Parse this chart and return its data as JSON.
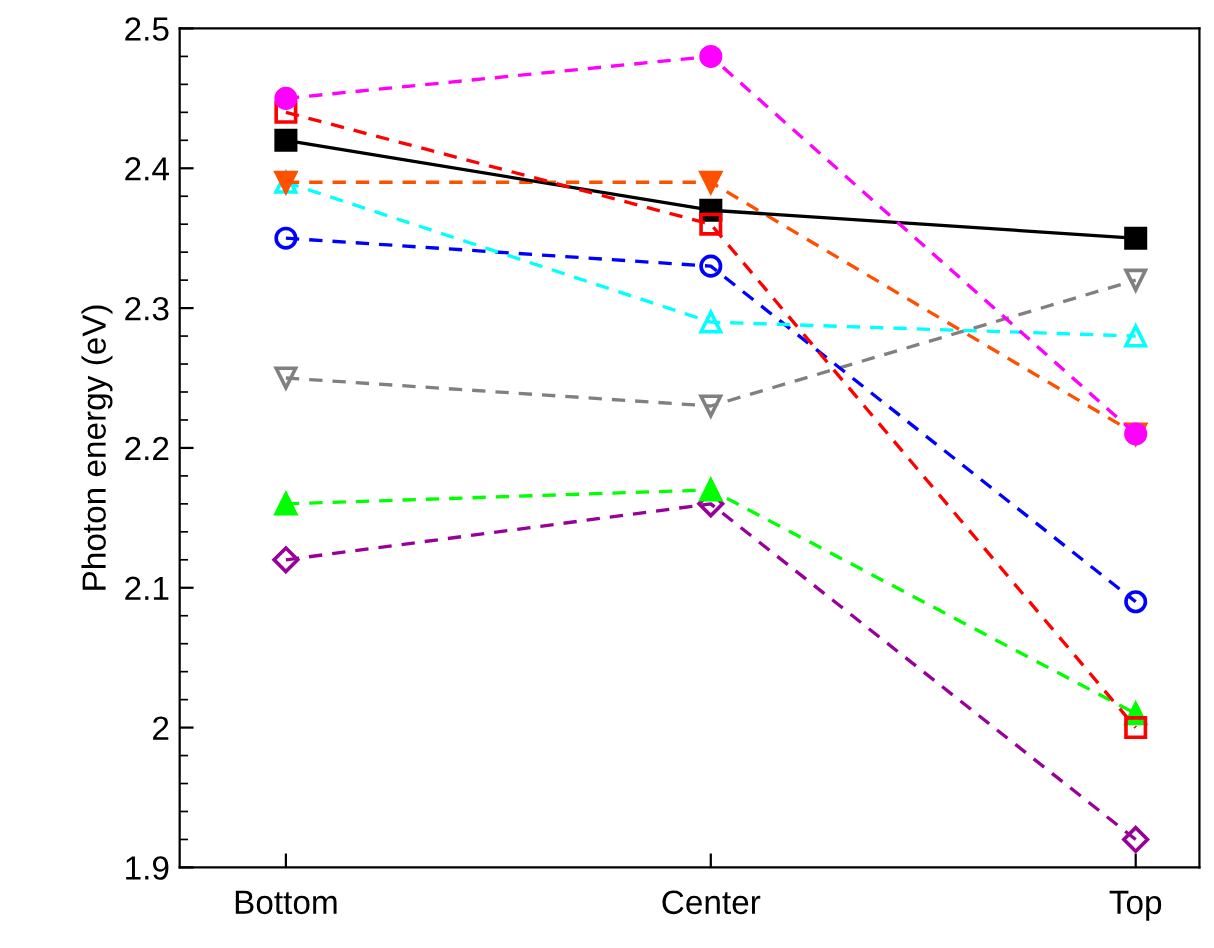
{
  "chart_data": {
    "type": "line",
    "ylabel": "Photon energy (eV)",
    "categories": [
      "Bottom",
      "Center",
      "Top"
    ],
    "ylim": [
      1.9,
      2.5
    ],
    "yticks": [
      {
        "value": 1.9,
        "label": "1.9"
      },
      {
        "value": 2.0,
        "label": "2"
      },
      {
        "value": 2.1,
        "label": "2.1"
      },
      {
        "value": 2.2,
        "label": "2.2"
      },
      {
        "value": 2.3,
        "label": "2.3"
      },
      {
        "value": 2.4,
        "label": "2.4"
      },
      {
        "value": 2.5,
        "label": "2.5"
      }
    ],
    "grid": false,
    "legend": false,
    "series": [
      {
        "color": "#ff00ff",
        "marker": "circle",
        "line_style": "dashed",
        "values": [
          2.45,
          2.48,
          2.21
        ]
      },
      {
        "color": "#ff0000",
        "marker": "square",
        "line_style": "dashed",
        "values": [
          2.44,
          2.36,
          2.0
        ]
      },
      {
        "color": "#000000",
        "marker": "square",
        "line_style": "solid",
        "values": [
          2.42,
          2.37,
          2.35
        ]
      },
      {
        "color": "#ff5000",
        "marker": "triangle_down",
        "line_style": "dashed",
        "values": [
          2.39,
          2.39,
          2.21
        ]
      },
      {
        "color": "#00ffff",
        "marker": "triangle",
        "line_style": "dashed",
        "values": [
          2.39,
          2.29,
          2.28
        ]
      },
      {
        "color": "#0000ff",
        "marker": "circle",
        "line_style": "dashed",
        "values": [
          2.35,
          2.33,
          2.09
        ]
      },
      {
        "color": "#808080",
        "marker": "triangle_down",
        "line_style": "dashed",
        "values": [
          2.25,
          2.23,
          2.32
        ]
      },
      {
        "color": "#00ff00",
        "marker": "triangle",
        "line_style": "dashed",
        "values": [
          2.16,
          2.17,
          2.01
        ]
      },
      {
        "color": "#990099",
        "marker": "diamond",
        "line_style": "dashed",
        "values": [
          2.12,
          2.16,
          1.92
        ]
      }
    ]
  }
}
